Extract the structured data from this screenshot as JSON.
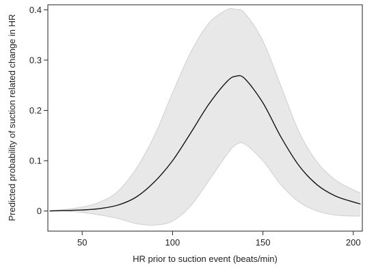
{
  "chart_data": {
    "type": "line",
    "title": "",
    "xlabel": "HR prior to suction event (beats/min)",
    "ylabel": "Predicted probability of suction related change in HR",
    "xlim": [
      31,
      205
    ],
    "ylim": [
      -0.04,
      0.41
    ],
    "xticks": [
      {
        "value": 50,
        "label": "50"
      },
      {
        "value": 100,
        "label": "100"
      },
      {
        "value": 150,
        "label": "150"
      },
      {
        "value": 200,
        "label": "200"
      }
    ],
    "yticks": [
      {
        "value": 0,
        "label": "0"
      },
      {
        "value": 0.1,
        "label": "0.1"
      },
      {
        "value": 0.2,
        "label": "0.2"
      },
      {
        "value": 0.3,
        "label": "0.3"
      },
      {
        "value": 0.4,
        "label": "0.4"
      }
    ],
    "grid": false,
    "legend": "none",
    "series": [
      {
        "kind": "line",
        "color": "#111111",
        "x": [
          32,
          40,
          50,
          60,
          70,
          80,
          90,
          100,
          110,
          120,
          130,
          135,
          140,
          150,
          160,
          170,
          180,
          190,
          200,
          204
        ],
        "y": [
          0.0,
          0.001,
          0.002,
          0.005,
          0.012,
          0.028,
          0.058,
          0.1,
          0.155,
          0.212,
          0.257,
          0.268,
          0.263,
          0.215,
          0.147,
          0.09,
          0.052,
          0.03,
          0.018,
          0.014
        ]
      },
      {
        "kind": "band",
        "color": "#e8e8e8",
        "edge_color": "#cfcfcf",
        "x": [
          32,
          40,
          50,
          60,
          70,
          80,
          90,
          100,
          110,
          120,
          130,
          135,
          140,
          150,
          160,
          170,
          180,
          190,
          200,
          204
        ],
        "upper": [
          0.001,
          0.003,
          0.008,
          0.018,
          0.04,
          0.085,
          0.15,
          0.235,
          0.315,
          0.373,
          0.4,
          0.401,
          0.393,
          0.338,
          0.248,
          0.157,
          0.097,
          0.062,
          0.042,
          0.036
        ],
        "lower": [
          0.0,
          0.0,
          -0.003,
          -0.008,
          -0.015,
          -0.025,
          -0.028,
          -0.02,
          0.01,
          0.06,
          0.112,
          0.132,
          0.133,
          0.1,
          0.052,
          0.018,
          0.0,
          -0.008,
          -0.01,
          -0.01
        ]
      }
    ]
  }
}
